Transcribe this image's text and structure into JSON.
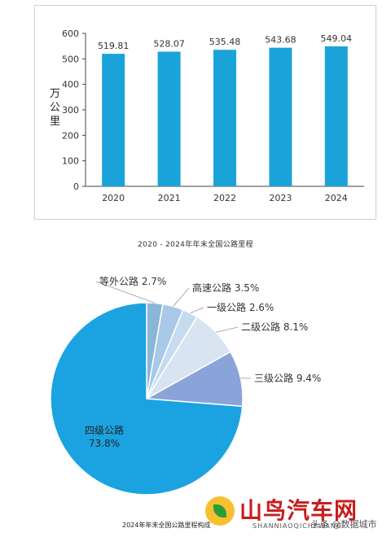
{
  "chart_data": [
    {
      "type": "bar",
      "title": "2020 - 2024年年末全国公路里程",
      "ylabel": "万公里",
      "categories": [
        "2020",
        "2021",
        "2022",
        "2023",
        "2024"
      ],
      "values": [
        519.81,
        528.07,
        535.48,
        543.68,
        549.04
      ],
      "value_labels": [
        "519.81",
        "528.07",
        "535.48",
        "543.68",
        "549.04"
      ],
      "ylim": [
        0,
        600
      ],
      "yticks": [
        0,
        100,
        200,
        300,
        400,
        500,
        600
      ],
      "color": "#1aa3d9",
      "grid": false
    },
    {
      "type": "pie",
      "title": "2024年年末全国公路里程构成",
      "slices": [
        {
          "name": "四级公路",
          "value": 73.8,
          "label": "四级公路",
          "value_label": "73.8%",
          "color": "#1aa3e0"
        },
        {
          "name": "等外公路",
          "value": 2.7,
          "label": "等外公路 2.7%",
          "color": "#8ab6d8"
        },
        {
          "name": "高速公路",
          "value": 3.5,
          "label": "高速公路 3.5%",
          "color": "#a8c8e8"
        },
        {
          "name": "一级公路",
          "value": 2.6,
          "label": "一级公路 2.6%",
          "color": "#c6dbef"
        },
        {
          "name": "二级公路",
          "value": 8.1,
          "label": "二级公路 8.1%",
          "color": "#d9e4f2"
        },
        {
          "name": "三级公路",
          "value": 9.4,
          "label": "三级公路 9.4%",
          "color": "#8aa4da"
        }
      ]
    }
  ],
  "watermark": {
    "title": "山鸟汽车网",
    "subtitle": "SHANNIAOQICHEWANG",
    "tag": "头条 @数据城市"
  },
  "colors": {
    "bar": "#1aa3d9",
    "pie_main": "#1aa3e0",
    "watermark_red": "#c81d1d"
  }
}
